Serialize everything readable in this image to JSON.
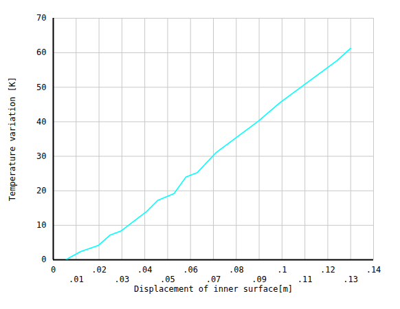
{
  "chart_data": {
    "type": "line",
    "xlabel": "Displacement of inner surface[m]",
    "ylabel": "Temperature variation [K]",
    "x": [
      0.0054,
      0.012,
      0.0198,
      0.0249,
      0.0297,
      0.0372,
      0.0408,
      0.0456,
      0.0528,
      0.058,
      0.063,
      0.0712,
      0.0895,
      0.099,
      0.1096,
      0.124,
      0.13
    ],
    "values": [
      0,
      2.4,
      4.2,
      7.2,
      8.4,
      12.2,
      14,
      17.2,
      19.2,
      24,
      25.3,
      31.1,
      40.1,
      45.5,
      50.7,
      57.7,
      61.3
    ],
    "color": "#00ffff",
    "xlim": [
      0,
      0.14
    ],
    "xticks": [
      0,
      {
        "value": 0.01,
        "label": ".01"
      },
      {
        "value": 0.02,
        "label": ".02"
      },
      {
        "value": 0.03,
        "label": ".03"
      },
      {
        "value": 0.04,
        "label": ".04"
      },
      {
        "value": 0.05,
        "label": ".05"
      },
      {
        "value": 0.06,
        "label": ".06"
      },
      {
        "value": 0.07,
        "label": ".07"
      },
      {
        "value": 0.08,
        "label": ".08"
      },
      {
        "value": 0.09,
        "label": ".09"
      },
      {
        "value": 0.1,
        "label": ".1"
      },
      {
        "value": 0.11,
        "label": ".11"
      },
      {
        "value": 0.12,
        "label": ".12"
      },
      {
        "value": 0.13,
        "label": ".13"
      },
      {
        "value": 0.14,
        "label": ".14"
      }
    ],
    "ylim": [
      0,
      70
    ],
    "yticks": [
      0,
      10,
      20,
      30,
      40,
      50,
      60,
      70
    ],
    "grid": true
  }
}
